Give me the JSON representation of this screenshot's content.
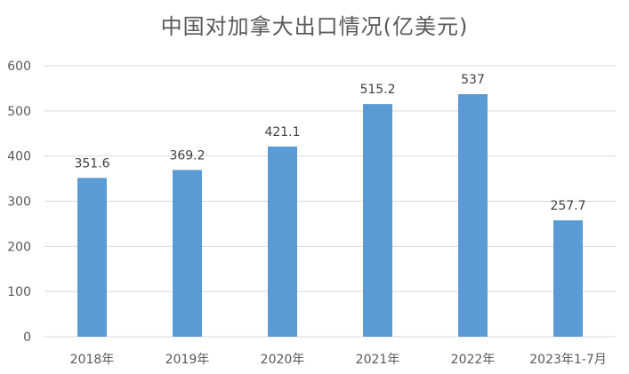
{
  "chart_data": {
    "type": "bar",
    "title": "中国对加拿大出口情况(亿美元)",
    "xlabel": "",
    "ylabel": "",
    "categories": [
      "2018年",
      "2019年",
      "2020年",
      "2021年",
      "2022年",
      "2023年1-7月"
    ],
    "values": [
      351.6,
      369.2,
      421.1,
      515.2,
      537,
      257.7
    ],
    "data_labels": [
      "351.6",
      "369.2",
      "421.1",
      "515.2",
      "537",
      "257.7"
    ],
    "ylim": [
      0,
      600
    ],
    "yticks": [
      0,
      100,
      200,
      300,
      400,
      500,
      600
    ],
    "grid": true,
    "legend": "none",
    "bar_color": "#5B9BD5",
    "grid_color": "#D9D9D9"
  }
}
